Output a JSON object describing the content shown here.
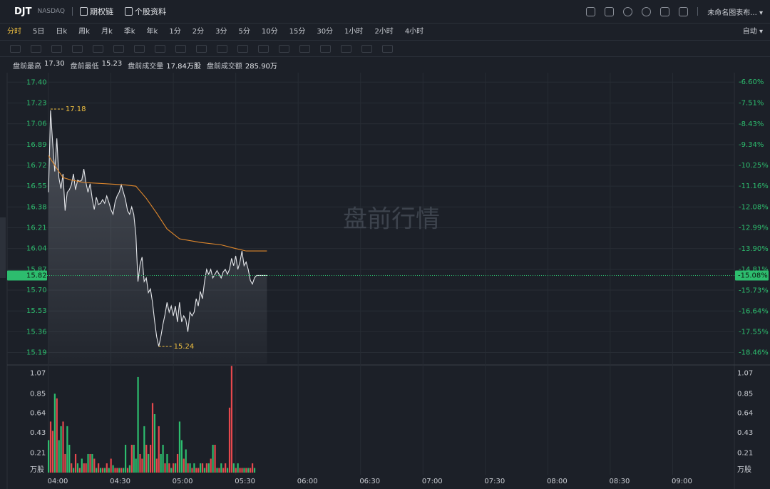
{
  "header": {
    "symbol": "DJT",
    "exchange": "NASDAQ",
    "links": [
      "期权链",
      "个股资料"
    ],
    "layout": "未命名图表布..."
  },
  "periods": {
    "items": [
      "分时",
      "5日",
      "日k",
      "周k",
      "月k",
      "季k",
      "年k",
      "1分",
      "2分",
      "3分",
      "5分",
      "10分",
      "15分",
      "30分",
      "1小时",
      "2小时",
      "4小时"
    ],
    "active": 0,
    "mode": "自动"
  },
  "stats": [
    {
      "label": "盘前最高",
      "value": "17.30"
    },
    {
      "label": "盘前最低",
      "value": "15.23"
    },
    {
      "label": "盘前成交量",
      "value": "17.84万股"
    },
    {
      "label": "盘前成交额",
      "value": "285.90万"
    }
  ],
  "chart_data": [
    {
      "type": "line",
      "watermark": "盘前行情",
      "x": [
        "04:00",
        "04:01",
        "04:02",
        "04:03",
        "04:04",
        "04:05",
        "04:06",
        "04:07",
        "04:08",
        "04:09",
        "04:10",
        "04:11",
        "04:12",
        "04:13",
        "04:14",
        "04:15",
        "04:16",
        "04:17",
        "04:18",
        "04:19",
        "04:20",
        "04:21",
        "04:22",
        "04:23",
        "04:24",
        "04:25",
        "04:26",
        "04:27",
        "04:28",
        "04:29",
        "04:30",
        "04:31",
        "04:32",
        "04:33",
        "04:34",
        "04:35",
        "04:36",
        "04:37",
        "04:38",
        "04:39",
        "04:40",
        "04:41",
        "04:42",
        "04:43",
        "04:44",
        "04:45",
        "04:46",
        "04:47",
        "04:48",
        "04:49",
        "04:50",
        "04:51",
        "04:52",
        "04:53",
        "04:54",
        "04:55",
        "04:56",
        "04:57",
        "04:58",
        "04:59",
        "05:00",
        "05:01",
        "05:02",
        "05:03",
        "05:04",
        "05:05",
        "05:06",
        "05:07",
        "05:08",
        "05:09",
        "05:10",
        "05:11",
        "05:12",
        "05:13",
        "05:14",
        "05:15",
        "05:16",
        "05:17",
        "05:18",
        "05:19",
        "05:20",
        "05:21",
        "05:22",
        "05:23",
        "05:24",
        "05:25",
        "05:26",
        "05:27",
        "05:28",
        "05:29",
        "05:30",
        "05:31",
        "05:32",
        "05:33",
        "05:34",
        "05:35",
        "05:36",
        "05:37",
        "05:38",
        "05:39",
        "05:40",
        "05:41",
        "05:42",
        "05:43",
        "05:44",
        "05:45"
      ],
      "xlim": [
        "04:00",
        "09:30"
      ],
      "series": [
        {
          "color": "#e4e6ea",
          "values": [
            16.5,
            17.17,
            16.91,
            16.67,
            16.94,
            16.62,
            16.53,
            16.65,
            16.35,
            16.5,
            16.52,
            16.56,
            16.65,
            16.52,
            16.6,
            16.59,
            16.6,
            16.69,
            16.58,
            16.5,
            16.57,
            16.45,
            16.36,
            16.46,
            16.4,
            16.41,
            16.44,
            16.41,
            16.47,
            16.42,
            16.36,
            16.32,
            16.42,
            16.47,
            16.5,
            16.56,
            16.5,
            16.44,
            16.35,
            16.32,
            16.38,
            16.32,
            16.15,
            15.77,
            15.91,
            15.97,
            15.77,
            15.8,
            15.68,
            15.71,
            15.6,
            15.45,
            15.32,
            15.24,
            15.32,
            15.42,
            15.5,
            15.6,
            15.52,
            15.57,
            15.49,
            15.57,
            15.44,
            15.6,
            15.44,
            15.49,
            15.46,
            15.36,
            15.52,
            15.49,
            15.52,
            15.63,
            15.57,
            15.69,
            15.63,
            15.77,
            15.87,
            15.83,
            15.87,
            15.8,
            15.83,
            15.86,
            15.83,
            15.8,
            15.85,
            15.87,
            15.83,
            15.87,
            15.96,
            15.9,
            15.98,
            15.87,
            15.93,
            16.02,
            15.9,
            15.93,
            15.87,
            15.78,
            15.75,
            15.8,
            15.82,
            15.82,
            15.82,
            15.82,
            15.82,
            15.82
          ]
        },
        {
          "color": "#e0882c",
          "x": [
            "04:00",
            "04:03",
            "04:07",
            "04:11",
            "04:17",
            "04:27",
            "04:37",
            "04:42",
            "04:47",
            "04:52",
            "04:57",
            "05:03",
            "05:13",
            "05:23",
            "05:30",
            "05:35",
            "05:45"
          ],
          "values": [
            16.8,
            16.72,
            16.62,
            16.6,
            16.58,
            16.57,
            16.56,
            16.55,
            16.45,
            16.33,
            16.2,
            16.12,
            16.09,
            16.07,
            16.04,
            16.02,
            16.02
          ]
        }
      ],
      "ylim": [
        15.1,
        17.46
      ],
      "yticks": [
        {
          "value": 17.4,
          "label": "17.40"
        },
        17.23,
        17.06,
        16.89,
        16.72,
        16.55,
        16.38,
        16.21,
        16.04,
        15.87,
        {
          "value": 15.7,
          "label": "15.70"
        },
        15.53,
        15.36,
        15.19
      ],
      "y2lim": [
        -18.94,
        -6.28
      ],
      "y2ticks": [
        {
          "value": -6.6,
          "label": "-6.60%"
        },
        {
          "value": -7.51,
          "label": "-7.51%"
        },
        {
          "value": -8.43,
          "label": "-8.43%"
        },
        {
          "value": -9.34,
          "label": "-9.34%"
        },
        {
          "value": -10.25,
          "label": "-10.25%"
        },
        {
          "value": -11.16,
          "label": "-11.16%"
        },
        {
          "value": -12.08,
          "label": "-12.08%"
        },
        {
          "value": -12.99,
          "label": "-12.99%"
        },
        {
          "value": -13.9,
          "label": "-13.90%"
        },
        {
          "value": -14.81,
          "label": "-14.81%"
        },
        {
          "value": -15.73,
          "label": "-15.73%"
        },
        {
          "value": -16.64,
          "label": "-16.64%"
        },
        {
          "value": -17.55,
          "label": "-17.55%"
        },
        {
          "value": -18.46,
          "label": "-18.46%"
        }
      ],
      "last": {
        "value": 15.82,
        "percent": {
          "value": -15.08,
          "label": "-15.08%"
        }
      },
      "annotations": [
        {
          "x": "04:01",
          "value": 17.18
        },
        {
          "x": "04:53",
          "value": 15.24
        }
      ],
      "grid": true
    },
    {
      "type": "bar",
      "ylabel": "万股",
      "x": [
        "04:00",
        "04:01",
        "04:02",
        "04:03",
        "04:04",
        "04:05",
        "04:06",
        "04:07",
        "04:08",
        "04:09",
        "04:10",
        "04:11",
        "04:12",
        "04:13",
        "04:14",
        "04:15",
        "04:16",
        "04:17",
        "04:18",
        "04:19",
        "04:20",
        "04:21",
        "04:22",
        "04:23",
        "04:24",
        "04:25",
        "04:26",
        "04:27",
        "04:28",
        "04:29",
        "04:30",
        "04:31",
        "04:32",
        "04:33",
        "04:34",
        "04:35",
        "04:36",
        "04:37",
        "04:38",
        "04:39",
        "04:40",
        "04:41",
        "04:42",
        "04:43",
        "04:44",
        "04:45",
        "04:46",
        "04:47",
        "04:48",
        "04:49",
        "04:50",
        "04:51",
        "04:52",
        "04:53",
        "04:54",
        "04:55",
        "04:56",
        "04:57",
        "04:58",
        "04:59",
        "05:00",
        "05:01",
        "05:02",
        "05:03",
        "05:04",
        "05:05",
        "05:06",
        "05:07",
        "05:08",
        "05:09",
        "05:10",
        "05:11",
        "05:12",
        "05:13",
        "05:14",
        "05:15",
        "05:16",
        "05:17",
        "05:18",
        "05:19",
        "05:20",
        "05:21",
        "05:22",
        "05:23",
        "05:24",
        "05:25",
        "05:26",
        "05:27",
        "05:28",
        "05:29",
        "05:30",
        "05:31",
        "05:32",
        "05:33",
        "05:34",
        "05:35",
        "05:36",
        "05:37",
        "05:38",
        "05:39"
      ],
      "values": [
        0.35,
        0.55,
        0.45,
        0.85,
        0.8,
        0.35,
        0.5,
        0.55,
        0.2,
        0.5,
        0.3,
        0.1,
        0.05,
        0.2,
        0.1,
        0.05,
        0.15,
        0.1,
        0.1,
        0.2,
        0.2,
        0.2,
        0.15,
        0.05,
        0.1,
        0.05,
        0.05,
        0.05,
        0.1,
        0.05,
        0.15,
        0.08,
        0.05,
        0.05,
        0.05,
        0.05,
        0.05,
        0.3,
        0.05,
        0.08,
        0.3,
        0.3,
        0.15,
        1.03,
        0.2,
        0.15,
        0.5,
        0.3,
        0.2,
        0.3,
        0.75,
        0.63,
        0.15,
        0.5,
        0.2,
        0.3,
        0.1,
        0.2,
        0.1,
        0.05,
        0.1,
        0.1,
        0.2,
        0.55,
        0.35,
        0.15,
        0.25,
        0.1,
        0.1,
        0.05,
        0.1,
        0.05,
        0.05,
        0.1,
        0.1,
        0.05,
        0.1,
        0.1,
        0.15,
        0.3,
        0.3,
        0.05,
        0.05,
        0.1,
        0.05,
        0.1,
        0.05,
        0.7,
        1.15,
        0.1,
        0.05,
        0.1,
        0.05,
        0.05,
        0.05,
        0.05,
        0.05,
        0.05,
        0.1,
        0.05
      ],
      "palette": [
        "#2dbd6e",
        "#e5484d"
      ],
      "color_index": [
        0,
        1,
        1,
        0,
        1,
        0,
        0,
        1,
        1,
        0,
        0,
        1,
        0,
        1,
        0,
        1,
        0,
        1,
        1,
        0,
        1,
        0,
        1,
        0,
        1,
        0,
        1,
        0,
        1,
        0,
        1,
        0,
        1,
        1,
        0,
        1,
        0,
        0,
        1,
        0,
        1,
        0,
        0,
        0,
        1,
        1,
        0,
        1,
        0,
        1,
        1,
        0,
        1,
        1,
        0,
        0,
        1,
        0,
        1,
        0,
        1,
        0,
        1,
        0,
        0,
        1,
        0,
        1,
        0,
        1,
        0,
        1,
        1,
        0,
        1,
        0,
        1,
        0,
        1,
        0,
        1,
        0,
        1,
        0,
        1,
        1,
        0,
        1,
        1,
        0,
        1,
        0,
        1,
        1,
        0,
        1,
        0,
        1,
        1,
        0
      ],
      "xlim": [
        "04:00",
        "09:30"
      ],
      "xticks": [
        "04:00",
        "04:30",
        "05:00",
        "05:30",
        "06:00",
        "06:30",
        "07:00",
        "07:30",
        "08:00",
        "08:30",
        "09:00"
      ],
      "ylim": [
        0,
        1.16
      ],
      "yticks": [
        1.07,
        0.85,
        0.64,
        0.43,
        0.21
      ],
      "grid": true
    }
  ]
}
